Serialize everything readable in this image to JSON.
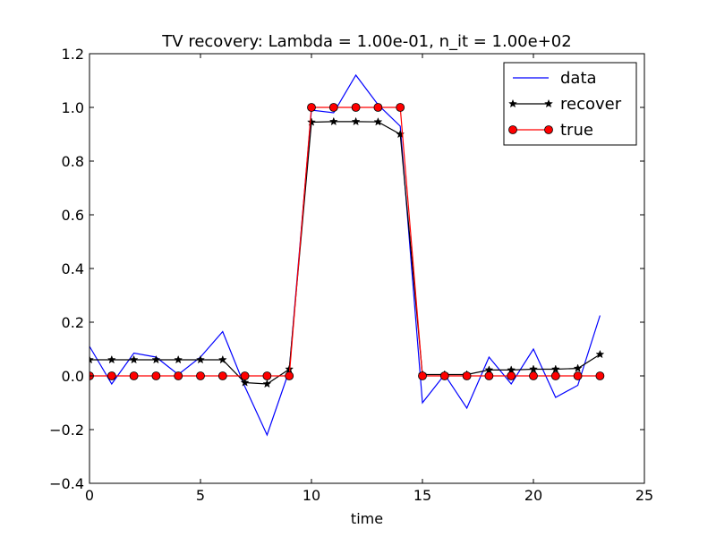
{
  "chart_data": {
    "type": "line",
    "title": "TV recovery: Lambda = 1.00e-01, n_it = 1.00e+02",
    "xlabel": "time",
    "ylabel": "",
    "xlim": [
      0,
      25
    ],
    "ylim": [
      -0.4,
      1.2
    ],
    "xticks": [
      0,
      5,
      10,
      15,
      20,
      25
    ],
    "xtick_labels": [
      "0",
      "5",
      "10",
      "15",
      "20",
      "25"
    ],
    "yticks": [
      -0.4,
      -0.2,
      0.0,
      0.2,
      0.4,
      0.6,
      0.8,
      1.0,
      1.2
    ],
    "ytick_labels": [
      "−0.4",
      "−0.2",
      "0.0",
      "0.2",
      "0.4",
      "0.6",
      "0.8",
      "1.0",
      "1.2"
    ],
    "grid": false,
    "legend_position": "top-right",
    "x": [
      0,
      1,
      2,
      3,
      4,
      5,
      6,
      7,
      8,
      9,
      10,
      11,
      12,
      13,
      14,
      15,
      16,
      17,
      18,
      19,
      20,
      21,
      22,
      23
    ],
    "series": [
      {
        "name": "data",
        "color": "#0000ff",
        "marker": "none",
        "values": [
          0.11,
          -0.03,
          0.085,
          0.07,
          0.005,
          0.07,
          0.165,
          -0.04,
          -0.22,
          0.02,
          0.99,
          0.98,
          1.12,
          1.01,
          0.93,
          -0.1,
          0.005,
          -0.12,
          0.07,
          -0.03,
          0.1,
          -0.08,
          -0.035,
          0.225
        ]
      },
      {
        "name": "recover",
        "color": "#000000",
        "marker": "star",
        "values": [
          0.06,
          0.06,
          0.06,
          0.06,
          0.06,
          0.06,
          0.06,
          -0.025,
          -0.03,
          0.025,
          0.945,
          0.947,
          0.947,
          0.946,
          0.9,
          0.005,
          0.005,
          0.005,
          0.022,
          0.022,
          0.025,
          0.025,
          0.028,
          0.08
        ]
      },
      {
        "name": "true",
        "color": "#ff0000",
        "marker": "circle",
        "values": [
          0,
          0,
          0,
          0,
          0,
          0,
          0,
          0,
          0,
          0,
          1,
          1,
          1,
          1,
          1,
          0,
          0,
          0,
          0,
          0,
          0,
          0,
          0,
          0
        ]
      }
    ]
  }
}
